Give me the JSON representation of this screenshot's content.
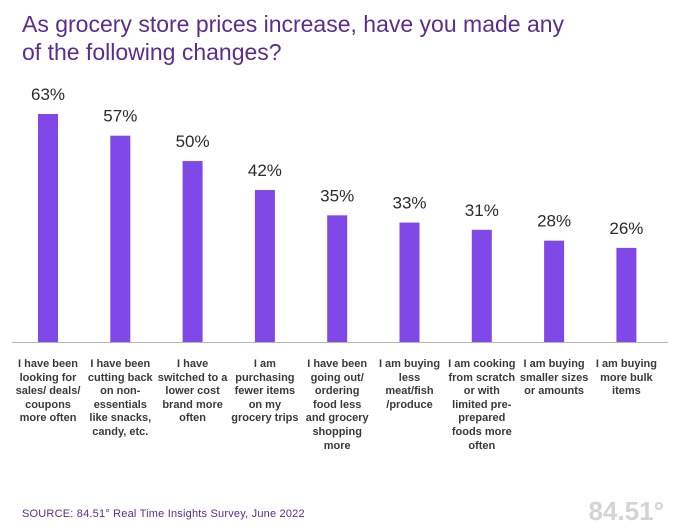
{
  "title": "As grocery store prices increase, have you made any of the following changes?",
  "chart_data": {
    "type": "bar",
    "title": "As grocery store prices increase, have you made any of the following changes?",
    "categories": [
      "I have been looking for sales/ deals/ coupons more often",
      "I have been cutting back on non-essentials like snacks, candy, etc.",
      "I have switched to a lower cost brand more often",
      "I am purchasing fewer items on my grocery trips",
      "I have been going out/ ordering food less and grocery shopping more",
      "I am buying less meat/fish /produce",
      "I am cooking from scratch or with limited pre-prepared foods more often",
      "I am buying smaller sizes or amounts",
      "I am buying more bulk items"
    ],
    "values": [
      63,
      57,
      50,
      42,
      35,
      33,
      31,
      28,
      26
    ],
    "value_labels": [
      "63%",
      "57%",
      "50%",
      "42%",
      "35%",
      "33%",
      "31%",
      "28%",
      "26%"
    ],
    "ylim": [
      0,
      70
    ],
    "xlabel": "",
    "ylabel": "",
    "grid": false,
    "bar_color": "#8048e6"
  },
  "source": "SOURCE: 84.51° Real Time Insights Survey, June 2022",
  "logo_text": "84.51°"
}
